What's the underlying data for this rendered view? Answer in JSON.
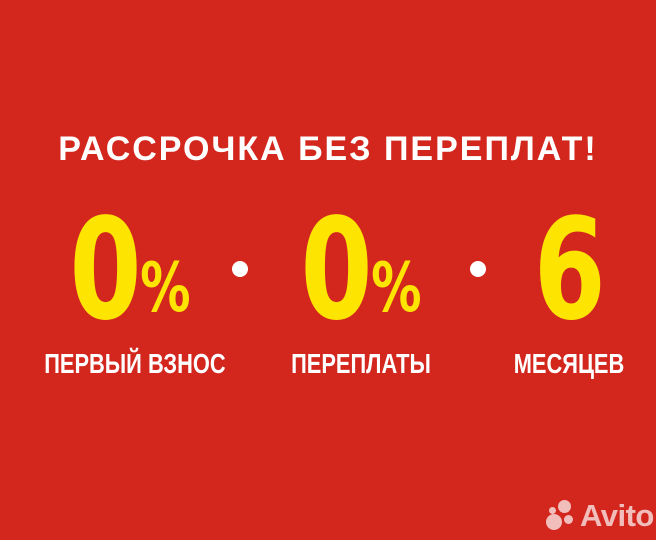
{
  "banner": {
    "headline": "РАССРОЧКА БЕЗ ПЕРЕПЛАТ!",
    "items": [
      {
        "value": "0",
        "unit": "%",
        "label": "ПЕРВЫЙ ВЗНОС"
      },
      {
        "value": "0",
        "unit": "%",
        "label": "ПЕРЕПЛАТЫ"
      },
      {
        "value": "6",
        "unit": "",
        "label": "МЕСЯЦЕВ"
      }
    ],
    "colors": {
      "background": "#d3271e",
      "accent_yellow": "#fde501",
      "text_white": "#ffffff",
      "watermark": "rgba(255,255,255,0.70)"
    }
  },
  "watermark": {
    "brand": "Avito"
  }
}
